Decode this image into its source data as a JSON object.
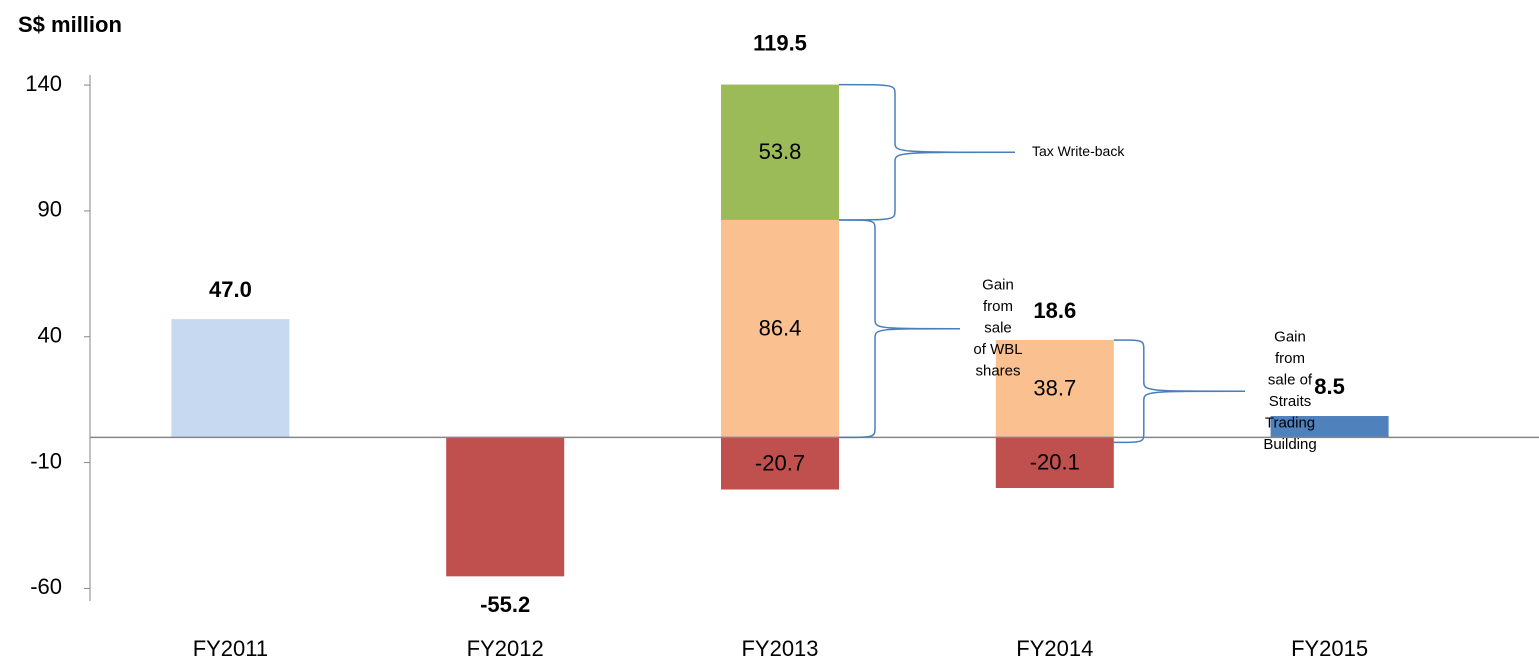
{
  "chart_data": {
    "type": "stacked_bar",
    "y_axis_title": "S$ million",
    "categories": [
      "FY2011",
      "FY2012",
      "FY2013",
      "FY2014",
      "FY2015"
    ],
    "series": [
      {
        "values": [
          47.0,
          -55.2,
          -20.7,
          -20.1,
          8.5
        ],
        "colors": [
          "#c6d9f1",
          "#c0504d",
          "#c0504d",
          "#c0504d",
          "#4f81bd"
        ]
      },
      {
        "values": [
          null,
          null,
          86.4,
          38.7,
          null
        ],
        "color": "#fac090"
      },
      {
        "values": [
          null,
          null,
          53.8,
          null,
          null
        ],
        "color": "#9bbb59"
      }
    ],
    "totals": [
      47.0,
      -55.2,
      119.5,
      18.6,
      8.5
    ],
    "totals_value_labels": [
      "47.0",
      "-55.2",
      "119.5",
      "18.6",
      "8.5"
    ],
    "annotations": [
      {
        "lines": [
          "Tax Write-back"
        ]
      },
      {
        "lines": [
          "Gain",
          "from",
          "sale",
          "of WBL",
          "shares"
        ]
      },
      {
        "lines": [
          "Gain",
          "from",
          "sale of",
          "Straits",
          "Trading",
          "Building"
        ]
      }
    ],
    "ylim": [
      -65,
      144
    ],
    "yticks": [
      140,
      90,
      40,
      -10,
      -60
    ],
    "annotation_color": "#4a7ebb"
  }
}
